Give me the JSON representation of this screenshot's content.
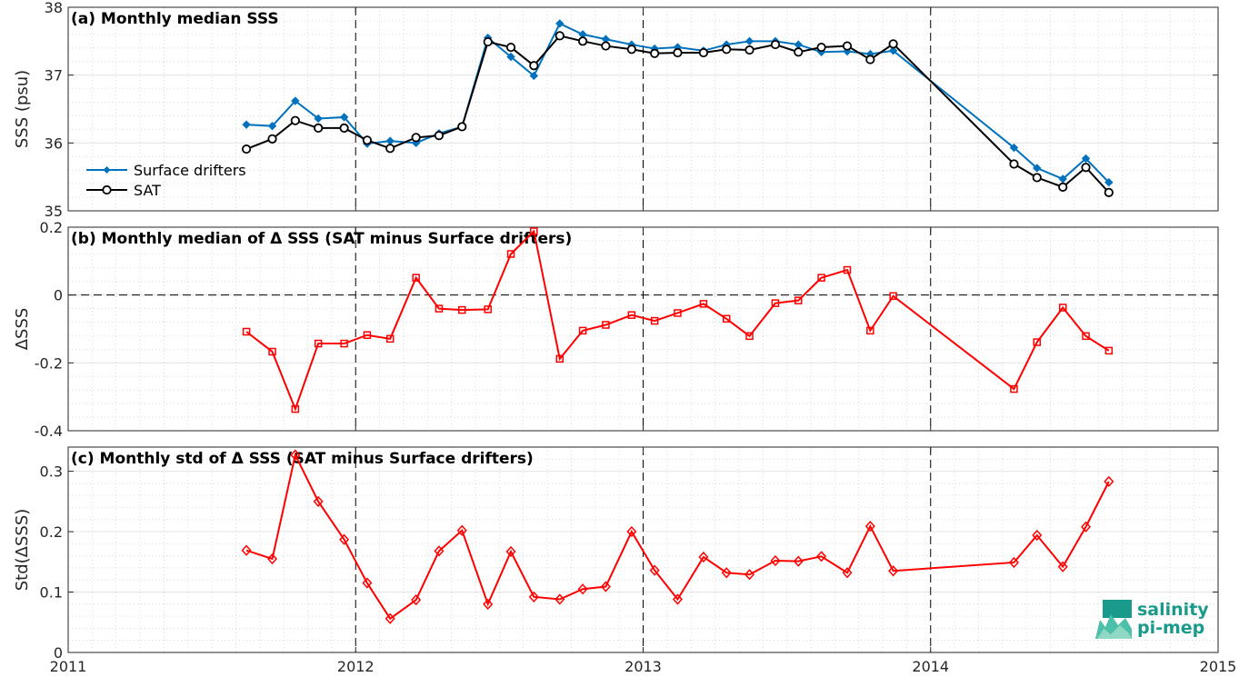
{
  "chart_data": [
    {
      "type": "line",
      "title": "(a) Monthly median SSS",
      "ylabel": "SSS (psu)",
      "xlim": [
        2011,
        2015
      ],
      "ylim": [
        35,
        38
      ],
      "yticks": [
        "35",
        "36",
        "37",
        "38"
      ],
      "legend": "bottom-left",
      "grid": true,
      "series": [
        {
          "name": "Surface drifters",
          "color": "#0072bd",
          "marker": "dot",
          "x": [
            2011.62,
            2011.71,
            2011.79,
            2011.87,
            2011.96,
            2012.04,
            2012.12,
            2012.21,
            2012.29,
            2012.37,
            2012.46,
            2012.54,
            2012.62,
            2012.71,
            2012.79,
            2012.87,
            2012.96,
            2013.04,
            2013.12,
            2013.21,
            2013.29,
            2013.37,
            2013.46,
            2013.54,
            2013.62,
            2013.71,
            2013.79,
            2013.87,
            2014.29,
            2014.37,
            2014.46,
            2014.54,
            2014.62
          ],
          "y": [
            36.27,
            36.25,
            36.62,
            36.36,
            36.38,
            35.99,
            36.03,
            36.0,
            36.14,
            36.24,
            37.55,
            37.27,
            36.99,
            37.76,
            37.6,
            37.53,
            37.45,
            37.39,
            37.41,
            37.36,
            37.45,
            37.5,
            37.5,
            37.45,
            37.34,
            37.35,
            37.31,
            37.36,
            35.93,
            35.63,
            35.47,
            35.77,
            35.42
          ]
        },
        {
          "name": "SAT",
          "color": "#000000",
          "marker": "circle",
          "x": [
            2011.62,
            2011.71,
            2011.79,
            2011.87,
            2011.96,
            2012.04,
            2012.12,
            2012.21,
            2012.29,
            2012.37,
            2012.46,
            2012.54,
            2012.62,
            2012.71,
            2012.79,
            2012.87,
            2012.96,
            2013.04,
            2013.12,
            2013.21,
            2013.29,
            2013.37,
            2013.46,
            2013.54,
            2013.62,
            2013.71,
            2013.79,
            2013.87,
            2014.29,
            2014.37,
            2014.46,
            2014.54,
            2014.62
          ],
          "y": [
            35.91,
            36.06,
            36.33,
            36.22,
            36.22,
            36.04,
            35.92,
            36.08,
            36.11,
            36.24,
            37.49,
            37.41,
            37.14,
            37.58,
            37.5,
            37.43,
            37.38,
            37.32,
            37.33,
            37.33,
            37.38,
            37.37,
            37.45,
            37.34,
            37.41,
            37.43,
            37.23,
            37.46,
            35.69,
            35.49,
            35.35,
            35.64,
            35.27
          ]
        }
      ]
    },
    {
      "type": "line",
      "title": "(b) Monthly median of Δ SSS (SAT minus Surface drifters)",
      "ylabel": "ΔSSS",
      "xlim": [
        2011,
        2015
      ],
      "ylim": [
        -0.4,
        0.2
      ],
      "yticks": [
        "-0.4",
        "-0.2",
        "0",
        "0.2"
      ],
      "zero_line": true,
      "grid": true,
      "series": [
        {
          "color": "#ff0000",
          "marker": "square",
          "x": [
            2011.62,
            2011.71,
            2011.79,
            2011.87,
            2011.96,
            2012.04,
            2012.12,
            2012.21,
            2012.29,
            2012.37,
            2012.46,
            2012.54,
            2012.62,
            2012.71,
            2012.79,
            2012.87,
            2012.96,
            2013.04,
            2013.12,
            2013.21,
            2013.29,
            2013.37,
            2013.46,
            2013.54,
            2013.62,
            2013.71,
            2013.79,
            2013.87,
            2014.29,
            2014.37,
            2014.46,
            2014.54,
            2014.62
          ],
          "y": [
            -0.108,
            -0.167,
            -0.336,
            -0.143,
            -0.143,
            -0.118,
            -0.129,
            0.051,
            -0.04,
            -0.044,
            -0.042,
            0.121,
            0.188,
            -0.188,
            -0.105,
            -0.088,
            -0.059,
            -0.076,
            -0.053,
            -0.026,
            -0.07,
            -0.121,
            -0.024,
            -0.016,
            0.051,
            0.074,
            -0.105,
            -0.003,
            -0.277,
            -0.139,
            -0.037,
            -0.121,
            -0.164
          ]
        }
      ]
    },
    {
      "type": "line",
      "title": "(c) Monthly std of Δ SSS (SAT minus Surface drifters)",
      "ylabel": "Std(ΔSSS)",
      "xlim": [
        2011,
        2015
      ],
      "ylim": [
        0,
        0.34
      ],
      "yticks": [
        "0",
        "0.1",
        "0.2",
        "0.3"
      ],
      "xticks": [
        "2011",
        "2012",
        "2013",
        "2014",
        "2015"
      ],
      "grid": true,
      "series": [
        {
          "color": "#ff0000",
          "marker": "diamond",
          "x": [
            2011.62,
            2011.71,
            2011.79,
            2011.87,
            2011.96,
            2012.04,
            2012.12,
            2012.21,
            2012.29,
            2012.37,
            2012.46,
            2012.54,
            2012.62,
            2012.71,
            2012.79,
            2012.87,
            2012.96,
            2013.04,
            2013.12,
            2013.21,
            2013.29,
            2013.37,
            2013.46,
            2013.54,
            2013.62,
            2013.71,
            2013.79,
            2013.87,
            2014.29,
            2014.37,
            2014.46,
            2014.54,
            2014.62
          ],
          "y": [
            0.169,
            0.155,
            0.327,
            0.25,
            0.187,
            0.115,
            0.056,
            0.087,
            0.168,
            0.202,
            0.08,
            0.167,
            0.092,
            0.088,
            0.105,
            0.109,
            0.2,
            0.136,
            0.088,
            0.158,
            0.132,
            0.129,
            0.152,
            0.151,
            0.159,
            0.132,
            0.209,
            0.135,
            0.149,
            0.194,
            0.142,
            0.208,
            0.283
          ]
        }
      ]
    }
  ],
  "logo": {
    "line1": "salinity",
    "line2": "pi-mep",
    "color": "#1a9a8a"
  }
}
